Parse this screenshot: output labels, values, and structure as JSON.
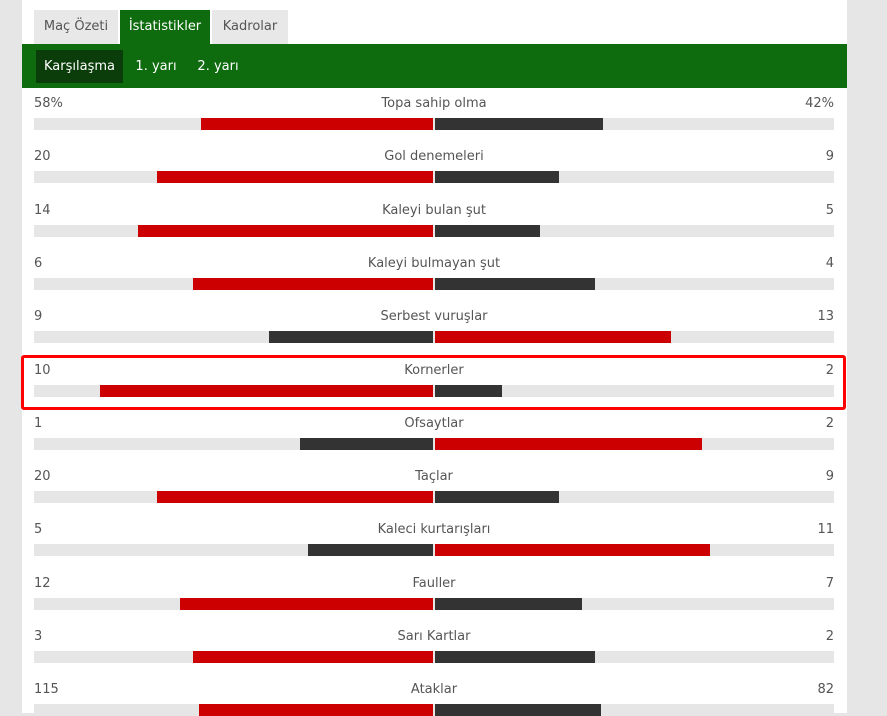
{
  "tabs": [
    "Maç Özeti",
    "İstatistikler",
    "Kadrolar"
  ],
  "active_tab": 1,
  "subtabs": [
    "Karşılaşma",
    "1. yarı",
    "2. yarı"
  ],
  "active_subtab": 0,
  "stats": [
    {
      "name": "Topa sahip olma",
      "home": 58,
      "away": 42,
      "home_label": "58%",
      "away_label": "42%"
    },
    {
      "name": "Gol denemeleri",
      "home": 20,
      "away": 9
    },
    {
      "name": "Kaleyi bulan şut",
      "home": 14,
      "away": 5
    },
    {
      "name": "Kaleyi bulmayan şut",
      "home": 6,
      "away": 4
    },
    {
      "name": "Serbest vuruşlar",
      "home": 9,
      "away": 13
    },
    {
      "name": "Kornerler",
      "home": 10,
      "away": 2,
      "highlighted": true
    },
    {
      "name": "Ofsaytlar",
      "home": 1,
      "away": 2
    },
    {
      "name": "Taçlar",
      "home": 20,
      "away": 9
    },
    {
      "name": "Kaleci kurtarışları",
      "home": 5,
      "away": 11
    },
    {
      "name": "Fauller",
      "home": 12,
      "away": 7
    },
    {
      "name": "Sarı Kartlar",
      "home": 3,
      "away": 2
    },
    {
      "name": "Ataklar",
      "home": 115,
      "away": 82
    }
  ]
}
